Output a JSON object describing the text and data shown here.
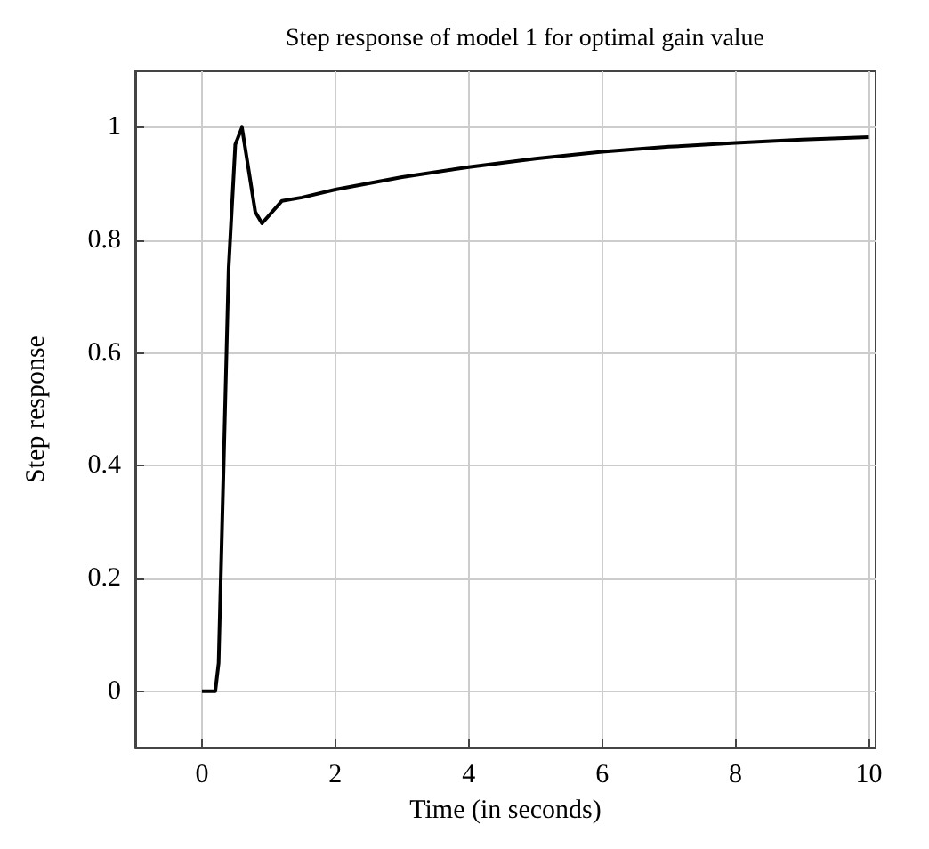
{
  "chart_data": {
    "type": "line",
    "title": "Step response of model 1 for optimal gain value",
    "xlabel": "Time (in seconds)",
    "ylabel": "Step response",
    "series": [
      {
        "color": "#000000",
        "x": [
          0,
          0.2,
          0.25,
          0.4,
          0.5,
          0.6,
          0.8,
          0.9,
          1.2,
          1.5,
          2,
          3,
          4,
          5,
          6,
          7,
          8,
          9,
          10
        ],
        "values": [
          0,
          0,
          0.05,
          0.75,
          0.97,
          1.0,
          0.85,
          0.83,
          0.87,
          0.876,
          0.89,
          0.912,
          0.93,
          0.945,
          0.957,
          0.966,
          0.973,
          0.979,
          0.983
        ]
      }
    ],
    "xlim": [
      -1,
      10.1
    ],
    "ylim": [
      -0.1,
      1.1
    ],
    "xticks": [
      0,
      2,
      4,
      6,
      8,
      10
    ],
    "yticks": [
      0,
      0.2,
      0.4,
      0.6,
      0.8,
      1
    ],
    "grid": true,
    "marker": "none",
    "line_style": "solid"
  }
}
